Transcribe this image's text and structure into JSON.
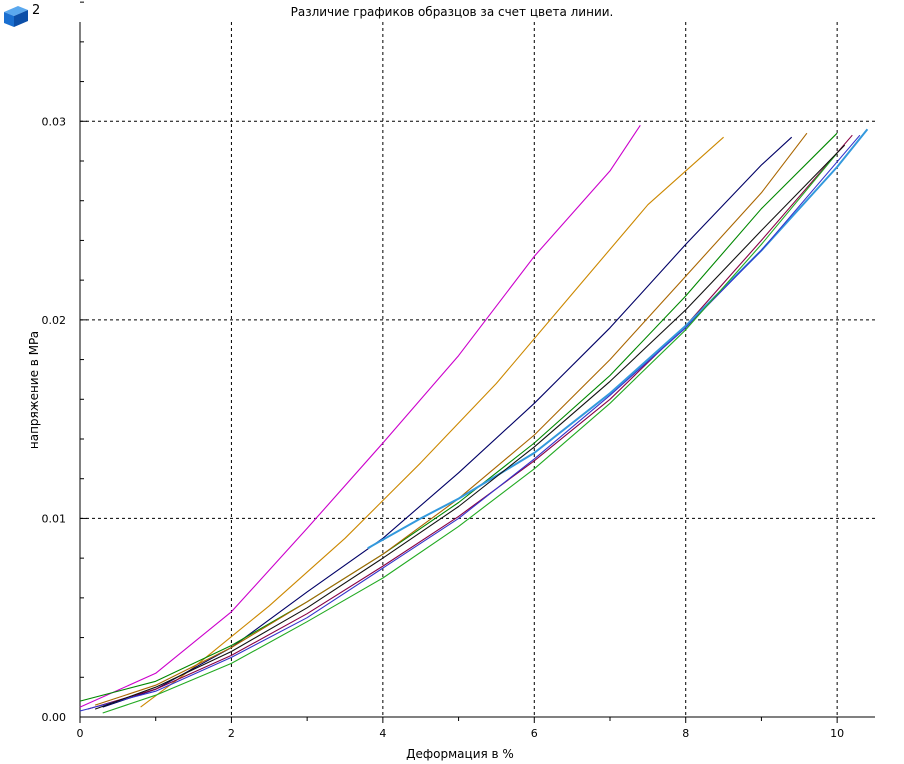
{
  "header": {
    "icon": "blue-cube-icon",
    "badge": "2"
  },
  "chart_data": {
    "type": "line",
    "title": "Различие графиков образцов за счет цвета линии.",
    "xlabel": "Деформация в %",
    "ylabel": "напряжение в MPa",
    "xlim": [
      0,
      10.5
    ],
    "ylim": [
      0,
      0.035
    ],
    "x_ticks": [
      0,
      2,
      4,
      6,
      8,
      10
    ],
    "x_tick_labels": [
      "0",
      "2",
      "4",
      "6",
      "8",
      "10"
    ],
    "y_ticks": [
      0,
      0.01,
      0.02,
      0.03
    ],
    "y_tick_labels": [
      "0.00",
      "0.01",
      "0.02",
      "0.03"
    ],
    "grid": true,
    "series": [
      {
        "color": "#cc00cc",
        "x": [
          0,
          1,
          2,
          3,
          4,
          5,
          6,
          7,
          7.4
        ],
        "y": [
          0.0005,
          0.0022,
          0.0053,
          0.0095,
          0.0138,
          0.0182,
          0.0232,
          0.0275,
          0.0298
        ]
      },
      {
        "color": "#cc8800",
        "x": [
          0.8,
          1.5,
          2.5,
          3.5,
          4.5,
          5.5,
          6.5,
          7.5,
          8.5
        ],
        "y": [
          0.0005,
          0.0025,
          0.0056,
          0.009,
          0.0128,
          0.0168,
          0.0213,
          0.0258,
          0.0292
        ]
      },
      {
        "color": "#000066",
        "x": [
          0.3,
          1,
          2,
          3,
          4,
          5,
          6,
          7,
          8,
          9,
          9.4
        ],
        "y": [
          0.0005,
          0.0014,
          0.0035,
          0.0063,
          0.009,
          0.0123,
          0.0158,
          0.0196,
          0.0238,
          0.0278,
          0.0292
        ]
      },
      {
        "color": "#008800",
        "x": [
          0,
          1,
          2,
          3,
          4,
          5,
          6,
          7,
          8,
          9,
          10
        ],
        "y": [
          0.0008,
          0.0018,
          0.0036,
          0.0058,
          0.0082,
          0.0108,
          0.0138,
          0.0172,
          0.0212,
          0.0256,
          0.0294
        ]
      },
      {
        "color": "#aa6600",
        "x": [
          0.2,
          1,
          2,
          3,
          4,
          5,
          6,
          7,
          8,
          9,
          9.6
        ],
        "y": [
          0.0006,
          0.0016,
          0.0035,
          0.0058,
          0.0082,
          0.011,
          0.0142,
          0.018,
          0.0222,
          0.0264,
          0.0294
        ]
      },
      {
        "color": "#880044",
        "x": [
          0.1,
          1,
          2,
          3,
          4,
          5,
          6,
          7,
          8,
          9,
          10.2
        ],
        "y": [
          0.0004,
          0.0014,
          0.0031,
          0.0052,
          0.0076,
          0.0101,
          0.0129,
          0.016,
          0.0197,
          0.024,
          0.0293
        ]
      },
      {
        "color": "#3399dd",
        "x": [
          3.8,
          4.5,
          5,
          6,
          7,
          8,
          9,
          10,
          10.4
        ],
        "y": [
          0.0085,
          0.01,
          0.011,
          0.0133,
          0.0163,
          0.0197,
          0.0235,
          0.0277,
          0.0296
        ]
      },
      {
        "color": "#3333cc",
        "x": [
          0,
          1,
          2,
          3,
          4,
          5,
          6,
          7,
          8,
          9,
          10.3
        ],
        "y": [
          0.0003,
          0.0013,
          0.003,
          0.005,
          0.0075,
          0.01,
          0.013,
          0.0162,
          0.0196,
          0.0235,
          0.0293
        ]
      },
      {
        "color": "#22aa22",
        "x": [
          0.3,
          1,
          2,
          3,
          4,
          5,
          6,
          7,
          8,
          9,
          10
        ],
        "y": [
          0.0002,
          0.0011,
          0.0027,
          0.0048,
          0.007,
          0.0096,
          0.0125,
          0.0158,
          0.0195,
          0.0238,
          0.0284
        ]
      },
      {
        "color": "#111111",
        "x": [
          0.2,
          1,
          2,
          3,
          4,
          5,
          6,
          7,
          8,
          9,
          10.1
        ],
        "y": [
          0.0004,
          0.0015,
          0.0033,
          0.0055,
          0.008,
          0.0106,
          0.0136,
          0.0169,
          0.0205,
          0.0245,
          0.0288
        ]
      }
    ]
  }
}
